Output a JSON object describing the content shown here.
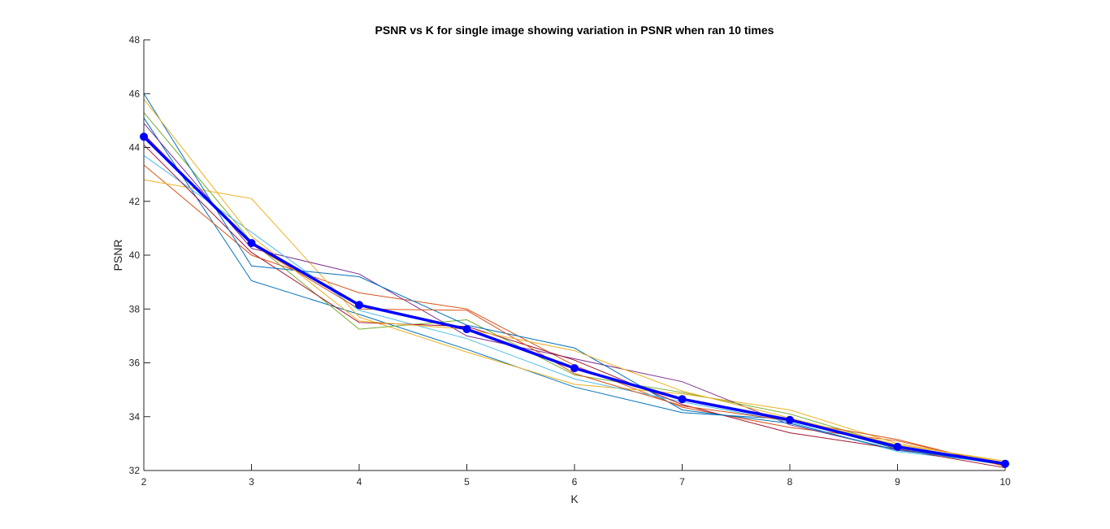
{
  "chart_data": {
    "type": "line",
    "title": "PSNR vs K for single image showing variation in PSNR when ran 10 times",
    "xlabel": "K",
    "ylabel": "PSNR",
    "xlim": [
      2,
      10
    ],
    "ylim": [
      32,
      48
    ],
    "x": [
      2,
      3,
      4,
      5,
      6,
      7,
      8,
      9,
      10
    ],
    "xticks": [
      "2",
      "3",
      "4",
      "5",
      "6",
      "7",
      "8",
      "9",
      "10"
    ],
    "yticks": [
      "32",
      "34",
      "36",
      "38",
      "40",
      "42",
      "44",
      "46",
      "48"
    ],
    "grid": false,
    "legend": false,
    "series": [
      {
        "color": "#0072BD",
        "values": [
          45.1,
          39.05,
          37.8,
          36.5,
          35.1,
          34.15,
          33.9,
          32.8,
          32.2
        ]
      },
      {
        "color": "#D95319",
        "values": [
          43.35,
          40.0,
          38.6,
          38.0,
          35.9,
          34.35,
          33.6,
          33.1,
          32.2
        ]
      },
      {
        "color": "#EDB120",
        "values": [
          42.8,
          42.1,
          37.7,
          36.4,
          35.2,
          34.85,
          34.25,
          33.0,
          32.3
        ]
      },
      {
        "color": "#7E2F8E",
        "values": [
          44.9,
          40.25,
          39.3,
          37.0,
          36.15,
          35.3,
          33.7,
          32.75,
          32.3
        ]
      },
      {
        "color": "#77AC30",
        "values": [
          45.3,
          40.5,
          37.25,
          37.6,
          35.55,
          34.9,
          34.1,
          32.9,
          32.25
        ]
      },
      {
        "color": "#4DBEEE",
        "values": [
          43.7,
          40.85,
          37.95,
          36.9,
          35.4,
          34.55,
          33.8,
          32.7,
          32.25
        ]
      },
      {
        "color": "#A2142F",
        "values": [
          44.1,
          40.1,
          37.5,
          37.35,
          36.1,
          34.45,
          33.4,
          32.8,
          32.1
        ]
      },
      {
        "color": "#0072BD",
        "values": [
          46.0,
          39.6,
          39.2,
          37.4,
          36.55,
          34.25,
          33.75,
          32.75,
          32.3
        ]
      },
      {
        "color": "#D95319",
        "values": [
          44.5,
          40.4,
          38.0,
          37.95,
          35.6,
          34.4,
          33.85,
          33.15,
          32.15
        ]
      },
      {
        "color": "#EDB120",
        "values": [
          45.8,
          40.7,
          37.55,
          37.25,
          36.45,
          34.95,
          33.95,
          32.95,
          32.35
        ]
      }
    ],
    "mean_series": {
      "color": "#0000FF",
      "values": [
        44.4,
        40.45,
        38.15,
        37.25,
        35.8,
        34.65,
        33.88,
        32.88,
        32.25
      ]
    }
  }
}
